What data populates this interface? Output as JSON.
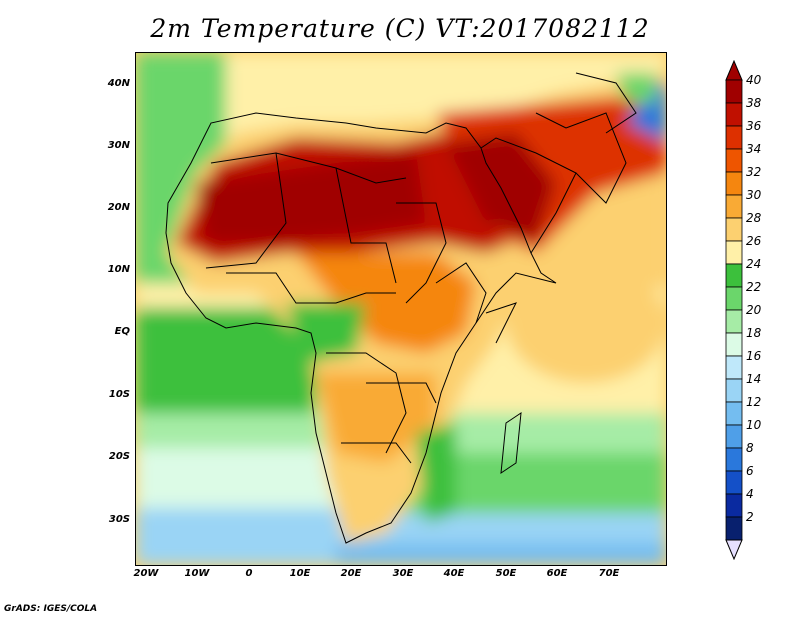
{
  "title": "2m Temperature (C) VT:2017082112",
  "credit": "GrADS: IGES/COLA",
  "map": {
    "lon_range": [
      -23,
      80
    ],
    "lat_range": [
      -37,
      46
    ],
    "lat_ticks": [
      {
        "value": 40,
        "label": "40N"
      },
      {
        "value": 30,
        "label": "30N"
      },
      {
        "value": 20,
        "label": "20N"
      },
      {
        "value": 10,
        "label": "10N"
      },
      {
        "value": 0,
        "label": "EQ"
      },
      {
        "value": -10,
        "label": "10S"
      },
      {
        "value": -20,
        "label": "20S"
      },
      {
        "value": -30,
        "label": "30S"
      }
    ],
    "lon_ticks": [
      {
        "value": -20,
        "label": "20W"
      },
      {
        "value": -10,
        "label": "10W"
      },
      {
        "value": 0,
        "label": "0"
      },
      {
        "value": 10,
        "label": "10E"
      },
      {
        "value": 20,
        "label": "20E"
      },
      {
        "value": 30,
        "label": "30E"
      },
      {
        "value": 40,
        "label": "40E"
      },
      {
        "value": 50,
        "label": "50E"
      },
      {
        "value": 60,
        "label": "60E"
      },
      {
        "value": 70,
        "label": "70E"
      }
    ]
  },
  "colorbar": {
    "labels": [
      "40",
      "38",
      "36",
      "34",
      "32",
      "30",
      "28",
      "26",
      "24",
      "22",
      "20",
      "18",
      "16",
      "14",
      "12",
      "10",
      "8",
      "6",
      "4",
      "2"
    ],
    "colors": [
      "#a00000",
      "#c01000",
      "#dd3000",
      "#ee5500",
      "#f5860f",
      "#f9aa35",
      "#fcd070",
      "#fff0a8",
      "#3cc03c",
      "#6bd66b",
      "#a6eca6",
      "#dcfbe6",
      "#bfe8fa",
      "#9ad4f5",
      "#74bdf0",
      "#4f9fe8",
      "#2a78dc",
      "#1450c8",
      "#0a2aa0",
      "#08206e"
    ],
    "top_arrow_color": "#a00000",
    "bottom_arrow_color": "#e6e0ff"
  }
}
